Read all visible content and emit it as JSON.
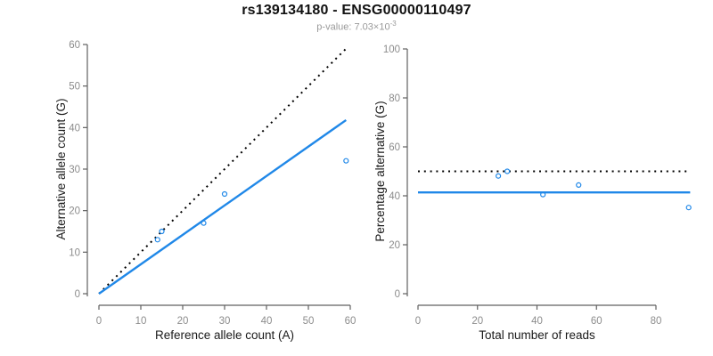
{
  "header": {
    "title": "rs139134180 - ENSG00000110497",
    "subtitle_prefix": "p-value: 7.03×10",
    "subtitle_exponent": "-3"
  },
  "colors": {
    "accent_blue": "#2088e8",
    "line_black": "#000000",
    "axis_gray": "#606060",
    "tick_label_gray": "#8c8c8c",
    "axis_title_black": "#1a1a1a"
  },
  "chart_data": [
    {
      "type": "scatter",
      "panel": "left",
      "xlabel": "Reference allele count (A)",
      "ylabel": "Alternative allele count (G)",
      "xlim": [
        0,
        60
      ],
      "ylim": [
        0,
        60
      ],
      "xticks": [
        0,
        10,
        20,
        30,
        40,
        50,
        60
      ],
      "yticks": [
        0,
        10,
        20,
        30,
        40,
        50,
        60
      ],
      "marker": "open-circle",
      "points": [
        [
          14,
          13
        ],
        [
          15,
          15
        ],
        [
          25,
          17
        ],
        [
          30,
          24
        ],
        [
          59,
          32
        ]
      ],
      "lines": [
        {
          "name": "identity",
          "style": "dotted",
          "color": "#000000",
          "from": [
            0,
            0
          ],
          "to": [
            59,
            59
          ]
        },
        {
          "name": "fit",
          "style": "solid",
          "color": "#2088e8",
          "from": [
            0,
            0
          ],
          "to": [
            59,
            41.8
          ]
        }
      ]
    },
    {
      "type": "scatter",
      "panel": "right",
      "xlabel": "Total number of reads",
      "ylabel": "Percentage alternative (G)",
      "xlim": [
        0,
        91
      ],
      "ylim": [
        0,
        100
      ],
      "xticks": [
        0,
        20,
        40,
        60,
        80
      ],
      "yticks": [
        0,
        20,
        40,
        60,
        80,
        100
      ],
      "marker": "open-circle",
      "points": [
        [
          27,
          48.1
        ],
        [
          30,
          50
        ],
        [
          42,
          40.5
        ],
        [
          54,
          44.4
        ],
        [
          91,
          35.2
        ]
      ],
      "lines": [
        {
          "name": "expected-50pct",
          "style": "dotted",
          "color": "#000000",
          "from": [
            0,
            50
          ],
          "to": [
            91,
            50
          ]
        },
        {
          "name": "fit",
          "style": "solid",
          "color": "#2088e8",
          "from": [
            0,
            41.4
          ],
          "to": [
            91.5,
            41.4
          ]
        }
      ]
    }
  ]
}
